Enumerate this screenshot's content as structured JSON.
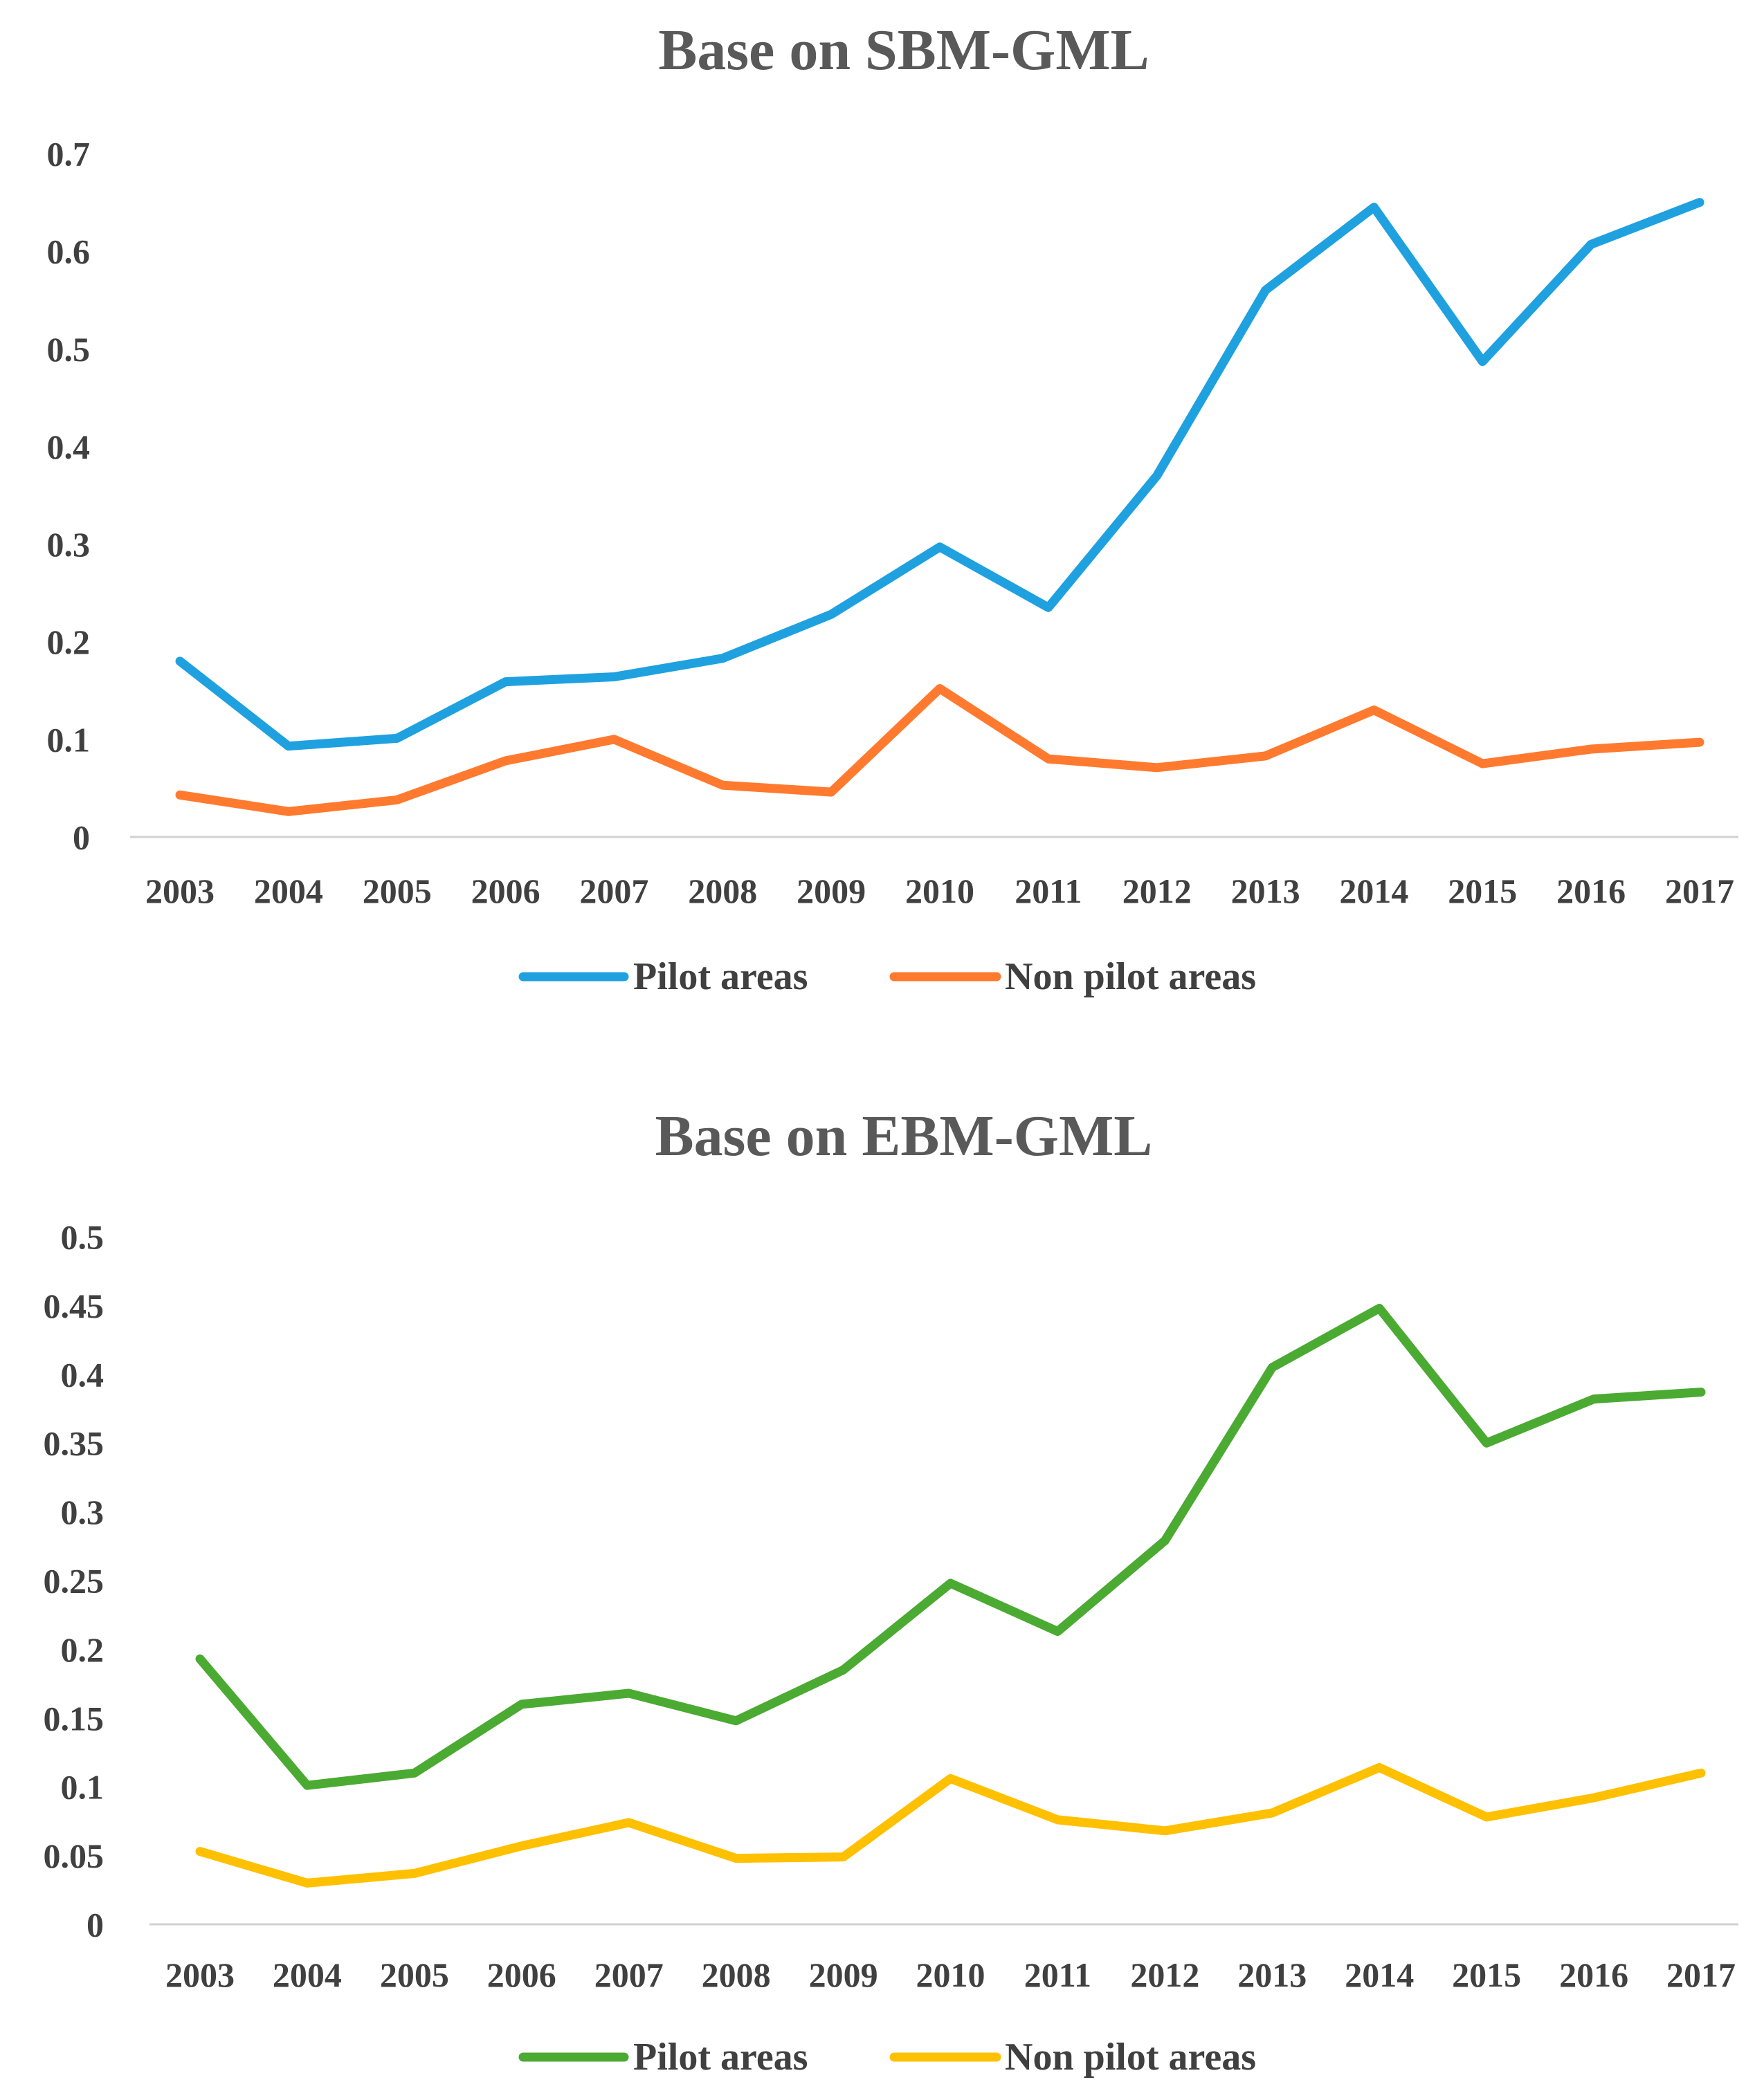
{
  "chart_data": [
    {
      "type": "line",
      "title": "Base on SBM-GML",
      "xlabel": "",
      "ylabel": "",
      "categories": [
        "2003",
        "2004",
        "2005",
        "2006",
        "2007",
        "2008",
        "2009",
        "2010",
        "2011",
        "2012",
        "2013",
        "2014",
        "2015",
        "2016",
        "2017"
      ],
      "ylim": [
        0,
        0.7
      ],
      "yticks": [
        0,
        0.1,
        0.2,
        0.3,
        0.4,
        0.5,
        0.6,
        0.7
      ],
      "ytick_labels": [
        "0",
        "0.1",
        "0.2",
        "0.3",
        "0.4",
        "0.5",
        "0.6",
        "0.7"
      ],
      "grid": false,
      "legend_position": "bottom",
      "series": [
        {
          "name": "Pilot areas",
          "color": "#1FA1E0",
          "values": [
            0.18,
            0.093,
            0.101,
            0.159,
            0.164,
            0.183,
            0.228,
            0.297,
            0.235,
            0.37,
            0.56,
            0.645,
            0.487,
            0.607,
            0.65
          ]
        },
        {
          "name": "Non pilot areas",
          "color": "#FF7A2F",
          "values": [
            0.043,
            0.026,
            0.038,
            0.078,
            0.1,
            0.053,
            0.046,
            0.152,
            0.08,
            0.071,
            0.083,
            0.13,
            0.075,
            0.09,
            0.097
          ]
        }
      ]
    },
    {
      "type": "line",
      "title": "Base on EBM-GML",
      "xlabel": "",
      "ylabel": "",
      "categories": [
        "2003",
        "2004",
        "2005",
        "2006",
        "2007",
        "2008",
        "2009",
        "2010",
        "2011",
        "2012",
        "2013",
        "2014",
        "2015",
        "2016",
        "2017"
      ],
      "ylim": [
        0,
        0.5
      ],
      "yticks": [
        0,
        0.05,
        0.1,
        0.15,
        0.2,
        0.25,
        0.3,
        0.35,
        0.4,
        0.45,
        0.5
      ],
      "ytick_labels": [
        "0",
        "0.05",
        "0.1",
        "0.15",
        "0.2",
        "0.25",
        "0.3",
        "0.35",
        "0.4",
        "0.45",
        "0.5"
      ],
      "grid": false,
      "legend_position": "bottom",
      "series": [
        {
          "name": "Pilot areas",
          "color": "#4BAA32",
          "values": [
            0.193,
            0.101,
            0.11,
            0.16,
            0.168,
            0.148,
            0.185,
            0.248,
            0.213,
            0.279,
            0.405,
            0.448,
            0.35,
            0.382,
            0.387
          ]
        },
        {
          "name": "Non pilot areas",
          "color": "#FFC000",
          "values": [
            0.053,
            0.03,
            0.037,
            0.057,
            0.074,
            0.048,
            0.049,
            0.106,
            0.076,
            0.068,
            0.081,
            0.114,
            0.078,
            0.092,
            0.11
          ]
        }
      ]
    }
  ]
}
